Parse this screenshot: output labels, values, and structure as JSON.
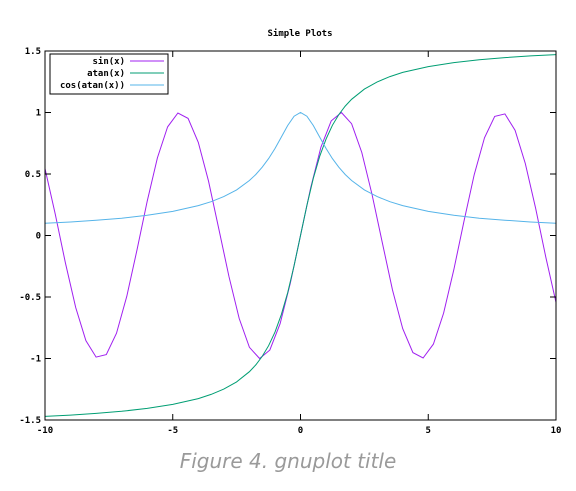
{
  "caption": "Figure 4. gnuplot title",
  "chart_data": {
    "type": "line",
    "title": "Simple Plots",
    "xlabel": "",
    "ylabel": "",
    "xlim": [
      -10,
      10
    ],
    "ylim": [
      -1.5,
      1.5
    ],
    "x_ticks": [
      -10,
      -5,
      0,
      5,
      10
    ],
    "x_tick_labels": [
      "-10",
      "-5",
      "0",
      "5",
      "10"
    ],
    "y_ticks": [
      -1.5,
      -1,
      -0.5,
      0,
      0.5,
      1,
      1.5
    ],
    "y_tick_labels": [
      "-1.5",
      "-1",
      "-0.5",
      "0",
      "0.5",
      "1",
      "1.5"
    ],
    "grid": false,
    "legend_position": "top-left",
    "series": [
      {
        "name": "sin(x)",
        "color": "#a020f0",
        "x": [
          -10,
          -9.6,
          -9.2,
          -8.8,
          -8.4,
          -8,
          -7.6,
          -7.2,
          -6.8,
          -6.4,
          -6,
          -5.6,
          -5.2,
          -4.8,
          -4.4,
          -4,
          -3.6,
          -3.2,
          -2.8,
          -2.4,
          -2,
          -1.6,
          -1.2,
          -0.8,
          -0.4,
          0,
          0.4,
          0.8,
          1.2,
          1.6,
          2,
          2.4,
          2.8,
          3.2,
          3.6,
          4,
          4.4,
          4.8,
          5.2,
          5.6,
          6,
          6.4,
          6.8,
          7.2,
          7.6,
          8,
          8.4,
          8.8,
          9.2,
          9.6,
          10
        ],
        "values": [
          0.544,
          0.176,
          -0.223,
          -0.585,
          -0.855,
          -0.989,
          -0.968,
          -0.794,
          -0.494,
          -0.117,
          0.279,
          0.631,
          0.883,
          0.996,
          0.952,
          0.757,
          0.443,
          0.058,
          -0.335,
          -0.675,
          -0.909,
          -0.9996,
          -0.932,
          -0.717,
          -0.389,
          0,
          0.389,
          0.717,
          0.932,
          0.9996,
          0.909,
          0.675,
          0.335,
          -0.058,
          -0.443,
          -0.757,
          -0.952,
          -0.996,
          -0.883,
          -0.631,
          -0.279,
          0.117,
          0.494,
          0.794,
          0.968,
          0.989,
          0.855,
          0.585,
          0.223,
          -0.176,
          -0.544
        ]
      },
      {
        "name": "atan(x)",
        "color": "#009e73",
        "x": [
          -10,
          -9,
          -8,
          -7,
          -6,
          -5,
          -4,
          -3.5,
          -3,
          -2.5,
          -2,
          -1.75,
          -1.5,
          -1.25,
          -1,
          -0.75,
          -0.5,
          -0.25,
          0,
          0.25,
          0.5,
          0.75,
          1,
          1.25,
          1.5,
          1.75,
          2,
          2.5,
          3,
          3.5,
          4,
          5,
          6,
          7,
          8,
          9,
          10
        ],
        "values": [
          -1.471,
          -1.46,
          -1.446,
          -1.429,
          -1.406,
          -1.373,
          -1.326,
          -1.292,
          -1.249,
          -1.19,
          -1.107,
          -1.052,
          -0.983,
          -0.896,
          -0.785,
          -0.644,
          -0.464,
          -0.245,
          0,
          0.245,
          0.464,
          0.644,
          0.785,
          0.896,
          0.983,
          1.052,
          1.107,
          1.19,
          1.249,
          1.292,
          1.326,
          1.373,
          1.406,
          1.429,
          1.446,
          1.46,
          1.471
        ]
      },
      {
        "name": "cos(atan(x))",
        "color": "#56b4e9",
        "x": [
          -10,
          -9,
          -8,
          -7,
          -6,
          -5,
          -4,
          -3.5,
          -3,
          -2.5,
          -2,
          -1.75,
          -1.5,
          -1.25,
          -1,
          -0.75,
          -0.5,
          -0.25,
          0,
          0.25,
          0.5,
          0.75,
          1,
          1.25,
          1.5,
          1.75,
          2,
          2.5,
          3,
          3.5,
          4,
          5,
          6,
          7,
          8,
          9,
          10
        ],
        "values": [
          0.0995,
          0.11,
          0.124,
          0.141,
          0.164,
          0.196,
          0.243,
          0.275,
          0.316,
          0.371,
          0.447,
          0.496,
          0.555,
          0.625,
          0.707,
          0.8,
          0.894,
          0.97,
          1,
          0.97,
          0.894,
          0.8,
          0.707,
          0.625,
          0.555,
          0.496,
          0.447,
          0.371,
          0.316,
          0.275,
          0.243,
          0.196,
          0.164,
          0.141,
          0.124,
          0.11,
          0.0995
        ]
      }
    ]
  }
}
